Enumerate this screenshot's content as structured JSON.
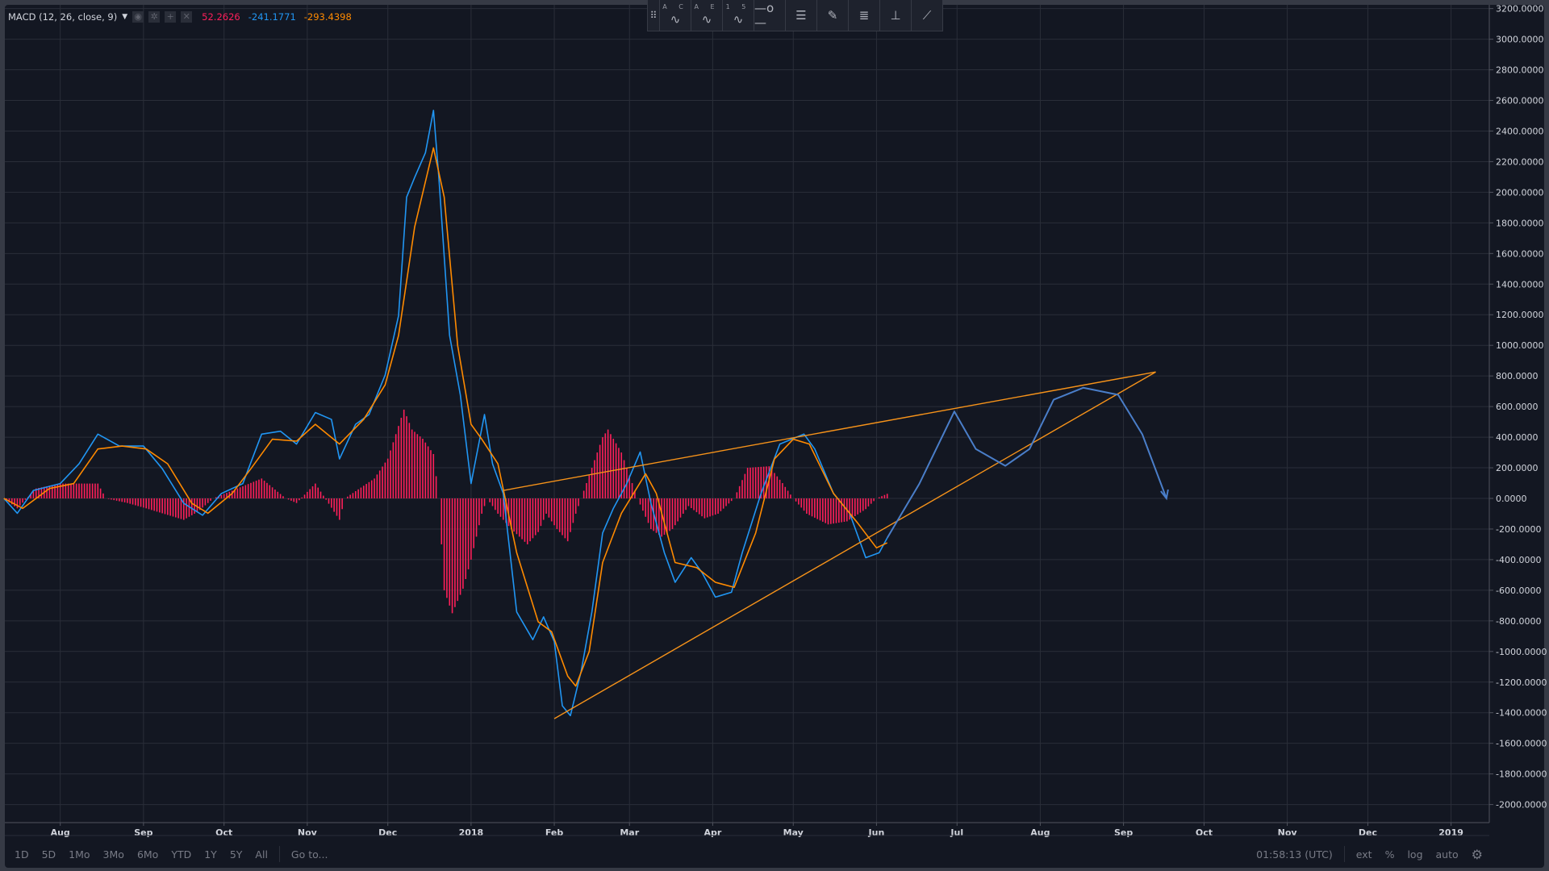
{
  "legend": {
    "title": "MACD (12, 26, close, 9)",
    "histogram_value": "52.2626",
    "macd_value": "-241.1771",
    "signal_value": "-293.4398",
    "icons": [
      "eye-icon",
      "gear-icon",
      "plus-icon",
      "close-icon"
    ]
  },
  "toolbar": {
    "items": [
      {
        "name": "drag-handle-icon",
        "label": ""
      },
      {
        "name": "abcd-pattern-icon",
        "label": "A C"
      },
      {
        "name": "elliott-wave-icon",
        "label": "A E"
      },
      {
        "name": "elliott-impulse-icon",
        "label": "1 5"
      },
      {
        "name": "horizontal-ray-icon",
        "label": ""
      },
      {
        "name": "parallel-channel-icon",
        "label": ""
      },
      {
        "name": "brush-icon",
        "label": ""
      },
      {
        "name": "fib-retracement-icon",
        "label": ""
      },
      {
        "name": "price-range-icon",
        "label": ""
      },
      {
        "name": "trend-line-icon",
        "label": ""
      }
    ]
  },
  "bottombar": {
    "ranges": [
      "1D",
      "5D",
      "1Mo",
      "3Mo",
      "6Mo",
      "YTD",
      "1Y",
      "5Y",
      "All"
    ],
    "goto": "Go to...",
    "time": "01:58:13 (UTC)",
    "ext": "ext",
    "percent": "%",
    "log": "log",
    "auto": "auto",
    "settings_icon": "gear-icon"
  },
  "colors": {
    "background": "#131722",
    "grid": "#2a2e39",
    "macd": "#2196f3",
    "signal": "#ff8a00",
    "histogram": "#ff1f5a",
    "drawing_line": "#f7931a",
    "projection": "#4a7ec9"
  },
  "chart_data": {
    "type": "line",
    "title": "MACD (12, 26, close, 9)",
    "ylim": [
      -2000,
      3200
    ],
    "xlim": [
      "2017-07-01",
      "2019-01-12"
    ],
    "grid": true,
    "y_ticks": [
      "3200.0000",
      "3000.0000",
      "2800.0000",
      "2600.0000",
      "2400.0000",
      "2200.0000",
      "2000.0000",
      "1800.0000",
      "1600.0000",
      "1400.0000",
      "1200.0000",
      "1000.0000",
      "800.0000",
      "600.0000",
      "400.0000",
      "200.0000",
      "0.0000",
      "-200.0000",
      "-400.0000",
      "-600.0000",
      "-800.0000",
      "-1000.0000",
      "-1200.0000",
      "-1400.0000",
      "-1600.0000",
      "-1800.0000",
      "-2000.0000"
    ],
    "x_ticks": [
      {
        "label": "Aug",
        "date": "2017-08-01"
      },
      {
        "label": "Sep",
        "date": "2017-09-01"
      },
      {
        "label": "Oct",
        "date": "2017-10-01"
      },
      {
        "label": "Nov",
        "date": "2017-11-01"
      },
      {
        "label": "Dec",
        "date": "2017-12-01"
      },
      {
        "label": "2018",
        "date": "2018-01-01"
      },
      {
        "label": "Feb",
        "date": "2018-02-01"
      },
      {
        "label": "Mar",
        "date": "2018-03-01"
      },
      {
        "label": "Apr",
        "date": "2018-04-01"
      },
      {
        "label": "May",
        "date": "2018-05-01"
      },
      {
        "label": "Jun",
        "date": "2018-06-01"
      },
      {
        "label": "Jul",
        "date": "2018-07-01"
      },
      {
        "label": "Aug",
        "date": "2018-08-01"
      },
      {
        "label": "Sep",
        "date": "2018-09-01"
      },
      {
        "label": "Oct",
        "date": "2018-10-01"
      },
      {
        "label": "Nov",
        "date": "2018-11-01"
      },
      {
        "label": "Dec",
        "date": "2018-12-01"
      },
      {
        "label": "2019",
        "date": "2019-01-01"
      }
    ],
    "series": [
      {
        "kind": "line",
        "color": "#2196f3",
        "points": [
          [
            "2017-07-11",
            0
          ],
          [
            "2017-07-16",
            -97
          ],
          [
            "2017-07-22",
            52
          ],
          [
            "2017-08-01",
            97
          ],
          [
            "2017-08-08",
            226
          ],
          [
            "2017-08-15",
            420
          ],
          [
            "2017-08-23",
            342
          ],
          [
            "2017-09-01",
            342
          ],
          [
            "2017-09-08",
            194
          ],
          [
            "2017-09-16",
            -32
          ],
          [
            "2017-09-23",
            -110
          ],
          [
            "2017-09-30",
            32
          ],
          [
            "2017-10-08",
            97
          ],
          [
            "2017-10-15",
            420
          ],
          [
            "2017-10-22",
            439
          ],
          [
            "2017-10-28",
            355
          ],
          [
            "2017-11-04",
            561
          ],
          [
            "2017-11-10",
            516
          ],
          [
            "2017-11-13",
            258
          ],
          [
            "2017-11-19",
            484
          ],
          [
            "2017-11-24",
            548
          ],
          [
            "2017-11-30",
            806
          ],
          [
            "2017-12-05",
            1194
          ],
          [
            "2017-12-08",
            1968
          ],
          [
            "2017-12-11",
            2097
          ],
          [
            "2017-12-15",
            2258
          ],
          [
            "2017-12-18",
            2535
          ],
          [
            "2017-12-20",
            2097
          ],
          [
            "2017-12-24",
            1065
          ],
          [
            "2017-12-28",
            677
          ],
          [
            "2018-01-01",
            97
          ],
          [
            "2018-01-06",
            548
          ],
          [
            "2018-01-09",
            226
          ],
          [
            "2018-01-13",
            32
          ],
          [
            "2018-01-18",
            -742
          ],
          [
            "2018-01-24",
            -923
          ],
          [
            "2018-01-28",
            -774
          ],
          [
            "2018-02-01",
            -935
          ],
          [
            "2018-02-04",
            -1355
          ],
          [
            "2018-02-07",
            -1419
          ],
          [
            "2018-02-11",
            -1129
          ],
          [
            "2018-02-15",
            -742
          ],
          [
            "2018-02-19",
            -226
          ],
          [
            "2018-02-23",
            -65
          ],
          [
            "2018-02-28",
            97
          ],
          [
            "2018-03-05",
            303
          ],
          [
            "2018-03-09",
            -32
          ],
          [
            "2018-03-14",
            -355
          ],
          [
            "2018-03-18",
            -548
          ],
          [
            "2018-03-24",
            -387
          ],
          [
            "2018-03-28",
            -484
          ],
          [
            "2018-04-02",
            -645
          ],
          [
            "2018-04-08",
            -613
          ],
          [
            "2018-04-12",
            -355
          ],
          [
            "2018-04-19",
            32
          ],
          [
            "2018-04-26",
            355
          ],
          [
            "2018-05-05",
            420
          ],
          [
            "2018-05-09",
            323
          ],
          [
            "2018-05-16",
            32
          ],
          [
            "2018-05-22",
            -97
          ],
          [
            "2018-05-28",
            -387
          ],
          [
            "2018-06-02",
            -355
          ],
          [
            "2018-06-05",
            -258
          ]
        ]
      },
      {
        "kind": "line",
        "color": "#ff8a00",
        "points": [
          [
            "2017-07-11",
            0
          ],
          [
            "2017-07-18",
            -65
          ],
          [
            "2017-07-28",
            65
          ],
          [
            "2017-08-06",
            97
          ],
          [
            "2017-08-15",
            323
          ],
          [
            "2017-08-24",
            342
          ],
          [
            "2017-09-02",
            323
          ],
          [
            "2017-09-10",
            226
          ],
          [
            "2017-09-19",
            -32
          ],
          [
            "2017-09-25",
            -97
          ],
          [
            "2017-10-04",
            32
          ],
          [
            "2017-10-11",
            194
          ],
          [
            "2017-10-19",
            387
          ],
          [
            "2017-10-28",
            374
          ],
          [
            "2017-11-04",
            484
          ],
          [
            "2017-11-13",
            355
          ],
          [
            "2017-11-22",
            516
          ],
          [
            "2017-11-30",
            742
          ],
          [
            "2017-12-05",
            1065
          ],
          [
            "2017-12-11",
            1774
          ],
          [
            "2017-12-18",
            2290
          ],
          [
            "2017-12-22",
            1968
          ],
          [
            "2017-12-27",
            1000
          ],
          [
            "2018-01-01",
            484
          ],
          [
            "2018-01-05",
            387
          ],
          [
            "2018-01-11",
            226
          ],
          [
            "2018-01-18",
            -355
          ],
          [
            "2018-01-26",
            -806
          ],
          [
            "2018-01-31",
            -871
          ],
          [
            "2018-02-06",
            -1161
          ],
          [
            "2018-02-09",
            -1226
          ],
          [
            "2018-02-14",
            -1000
          ],
          [
            "2018-02-19",
            -419
          ],
          [
            "2018-02-26",
            -97
          ],
          [
            "2018-03-07",
            161
          ],
          [
            "2018-03-11",
            32
          ],
          [
            "2018-03-18",
            -419
          ],
          [
            "2018-03-26",
            -452
          ],
          [
            "2018-04-02",
            -548
          ],
          [
            "2018-04-09",
            -581
          ],
          [
            "2018-04-17",
            -226
          ],
          [
            "2018-04-24",
            258
          ],
          [
            "2018-05-01",
            387
          ],
          [
            "2018-05-07",
            355
          ],
          [
            "2018-05-16",
            32
          ],
          [
            "2018-05-25",
            -161
          ],
          [
            "2018-06-01",
            -323
          ],
          [
            "2018-06-05",
            -290
          ]
        ]
      },
      {
        "kind": "histogram",
        "color": "#ff1f5a",
        "points": [
          [
            "2017-07-11",
            0
          ],
          [
            "2017-07-16",
            -65
          ],
          [
            "2017-07-23",
            65
          ],
          [
            "2017-08-01",
            97
          ],
          [
            "2017-08-15",
            97
          ],
          [
            "2017-08-18",
            0
          ],
          [
            "2017-08-26",
            -30
          ],
          [
            "2017-09-02",
            -65
          ],
          [
            "2017-09-16",
            -140
          ],
          [
            "2017-09-21",
            -90
          ],
          [
            "2017-09-27",
            0
          ],
          [
            "2017-10-06",
            65
          ],
          [
            "2017-10-15",
            130
          ],
          [
            "2017-10-24",
            0
          ],
          [
            "2017-10-28",
            -30
          ],
          [
            "2017-11-04",
            97
          ],
          [
            "2017-11-13",
            -140
          ],
          [
            "2017-11-15",
            0
          ],
          [
            "2017-11-26",
            130
          ],
          [
            "2017-12-01",
            260
          ],
          [
            "2017-12-07",
            580
          ],
          [
            "2017-12-10",
            450
          ],
          [
            "2017-12-14",
            390
          ],
          [
            "2017-12-18",
            290
          ],
          [
            "2017-12-20",
            0
          ],
          [
            "2017-12-22",
            -600
          ],
          [
            "2017-12-25",
            -750
          ],
          [
            "2017-12-29",
            -590
          ],
          [
            "2018-01-01",
            -400
          ],
          [
            "2018-01-05",
            -100
          ],
          [
            "2018-01-07",
            0
          ],
          [
            "2018-01-11",
            -100
          ],
          [
            "2018-01-16",
            -200
          ],
          [
            "2018-01-22",
            -300
          ],
          [
            "2018-01-26",
            -220
          ],
          [
            "2018-01-29",
            -100
          ],
          [
            "2018-02-02",
            -200
          ],
          [
            "2018-02-06",
            -280
          ],
          [
            "2018-02-09",
            -100
          ],
          [
            "2018-02-11",
            0
          ],
          [
            "2018-02-15",
            200
          ],
          [
            "2018-02-19",
            400
          ],
          [
            "2018-02-21",
            450
          ],
          [
            "2018-02-26",
            300
          ],
          [
            "2018-03-01",
            150
          ],
          [
            "2018-03-04",
            0
          ],
          [
            "2018-03-09",
            -200
          ],
          [
            "2018-03-13",
            -250
          ],
          [
            "2018-03-17",
            -200
          ],
          [
            "2018-03-23",
            -50
          ],
          [
            "2018-03-29",
            -130
          ],
          [
            "2018-04-03",
            -100
          ],
          [
            "2018-04-09",
            0
          ],
          [
            "2018-04-14",
            200
          ],
          [
            "2018-04-22",
            210
          ],
          [
            "2018-04-27",
            100
          ],
          [
            "2018-05-01",
            0
          ],
          [
            "2018-05-06",
            -100
          ],
          [
            "2018-05-14",
            -170
          ],
          [
            "2018-05-21",
            -150
          ],
          [
            "2018-05-28",
            -70
          ],
          [
            "2018-06-01",
            0
          ],
          [
            "2018-06-05",
            30
          ]
        ]
      }
    ],
    "annotations": [
      {
        "kind": "trend-line",
        "color": "#f7931a",
        "points": [
          [
            "2018-01-13",
            52
          ],
          [
            "2018-09-13",
            826
          ]
        ]
      },
      {
        "kind": "trend-line",
        "color": "#f7931a",
        "points": [
          [
            "2018-02-01",
            -1439
          ],
          [
            "2018-09-13",
            826
          ]
        ]
      },
      {
        "kind": "projection-path",
        "color": "#4a7ec9",
        "points": [
          [
            "2018-06-05",
            -258
          ],
          [
            "2018-06-17",
            97
          ],
          [
            "2018-06-30",
            568
          ],
          [
            "2018-07-08",
            323
          ],
          [
            "2018-07-19",
            213
          ],
          [
            "2018-07-28",
            323
          ],
          [
            "2018-08-06",
            645
          ],
          [
            "2018-08-17",
            723
          ],
          [
            "2018-08-30",
            677
          ],
          [
            "2018-09-08",
            419
          ],
          [
            "2018-09-17",
            0
          ]
        ]
      }
    ]
  }
}
